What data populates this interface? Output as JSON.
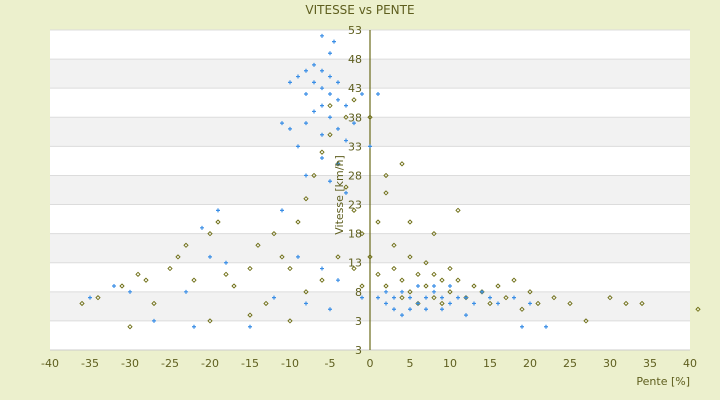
{
  "chart_data": {
    "type": "scatter",
    "title": "VITESSE vs PENTE",
    "xlabel": "Pente [%]",
    "ylabel": "Vitesse [km/h]",
    "xlim": [
      -40,
      40
    ],
    "ylim": [
      -2,
      53
    ],
    "x_ticks": [
      "-40",
      "-35",
      "-30",
      "-25",
      "-20",
      "-15",
      "-10",
      "-5",
      "0",
      "5",
      "10",
      "15",
      "20",
      "25",
      "30",
      "35",
      "40"
    ],
    "y_ticks": [
      "53",
      "48",
      "43",
      "38",
      "33",
      "28",
      "23",
      "18",
      "13",
      "8",
      "3",
      "3"
    ],
    "grid": "horizontal alternating bands",
    "legend": "none",
    "colors": {
      "background": "#ecf0cd",
      "plot": "#ffffff",
      "band": "#f2f2f2",
      "axis": "#6b6b1a",
      "series_blue": "#3a8ee6",
      "series_olive": "#6b6b10",
      "text": "#5e5e1e"
    },
    "series": [
      {
        "marker": "plus",
        "color": "#3a8ee6",
        "points": [
          [
            -6,
            52
          ],
          [
            -4.5,
            51
          ],
          [
            -5,
            49
          ],
          [
            -7,
            47
          ],
          [
            -8,
            46
          ],
          [
            -6,
            46
          ],
          [
            -5,
            45
          ],
          [
            -4,
            44
          ],
          [
            -9,
            45
          ],
          [
            -10,
            44
          ],
          [
            -7,
            44
          ],
          [
            -6,
            43
          ],
          [
            -5,
            42
          ],
          [
            -8,
            42
          ],
          [
            -4,
            41
          ],
          [
            -6,
            40
          ],
          [
            -7,
            39
          ],
          [
            -3,
            40
          ],
          [
            -1,
            42
          ],
          [
            1,
            42
          ],
          [
            -5,
            38
          ],
          [
            -8,
            37
          ],
          [
            -10,
            36
          ],
          [
            -11,
            37
          ],
          [
            -2,
            37
          ],
          [
            -4,
            36
          ],
          [
            -6,
            35
          ],
          [
            -3,
            34
          ],
          [
            0,
            33
          ],
          [
            -9,
            33
          ],
          [
            -6,
            31
          ],
          [
            -4,
            30
          ],
          [
            -8,
            28
          ],
          [
            -5,
            27
          ],
          [
            -3,
            25
          ],
          [
            -11,
            22
          ],
          [
            -19,
            22
          ],
          [
            -21,
            19
          ],
          [
            -20,
            14
          ],
          [
            -18,
            13
          ],
          [
            -9,
            14
          ],
          [
            -6,
            12
          ],
          [
            -4,
            10
          ],
          [
            -32,
            9
          ],
          [
            -30,
            8
          ],
          [
            -35,
            7
          ],
          [
            -23,
            8
          ],
          [
            -12,
            7
          ],
          [
            -8,
            6
          ],
          [
            -5,
            5
          ],
          [
            -22,
            2
          ],
          [
            -15,
            2
          ],
          [
            -27,
            3
          ],
          [
            -1,
            7
          ],
          [
            1,
            7
          ],
          [
            2,
            6
          ],
          [
            3,
            7
          ],
          [
            4,
            8
          ],
          [
            5,
            7
          ],
          [
            6,
            6
          ],
          [
            7,
            7
          ],
          [
            8,
            8
          ],
          [
            9,
            7
          ],
          [
            10,
            6
          ],
          [
            11,
            7
          ],
          [
            12,
            7
          ],
          [
            13,
            6
          ],
          [
            14,
            8
          ],
          [
            15,
            7
          ],
          [
            16,
            6
          ],
          [
            3,
            5
          ],
          [
            5,
            5
          ],
          [
            7,
            5
          ],
          [
            9,
            5
          ],
          [
            2,
            8
          ],
          [
            6,
            9
          ],
          [
            8,
            9
          ],
          [
            10,
            9
          ],
          [
            19,
            2
          ],
          [
            22,
            2
          ],
          [
            20,
            6
          ],
          [
            18,
            7
          ],
          [
            4,
            4
          ],
          [
            12,
            4
          ]
        ]
      },
      {
        "marker": "diamond",
        "color": "#6b6b10",
        "points": [
          [
            -36,
            6
          ],
          [
            -34,
            7
          ],
          [
            -31,
            9
          ],
          [
            -28,
            10
          ],
          [
            -25,
            12
          ],
          [
            -24,
            14
          ],
          [
            -23,
            16
          ],
          [
            -20,
            18
          ],
          [
            -19,
            20
          ],
          [
            -22,
            10
          ],
          [
            -18,
            11
          ],
          [
            -17,
            9
          ],
          [
            -15,
            12
          ],
          [
            -14,
            16
          ],
          [
            -12,
            18
          ],
          [
            -11,
            14
          ],
          [
            -10,
            12
          ],
          [
            -9,
            20
          ],
          [
            -8,
            24
          ],
          [
            -7,
            28
          ],
          [
            -6,
            32
          ],
          [
            -5,
            35
          ],
          [
            -4,
            30
          ],
          [
            -3,
            26
          ],
          [
            -2,
            22
          ],
          [
            -1,
            18
          ],
          [
            -3,
            38
          ],
          [
            -5,
            40
          ],
          [
            -2,
            41
          ],
          [
            0,
            38
          ],
          [
            -8,
            8
          ],
          [
            -6,
            10
          ],
          [
            -4,
            14
          ],
          [
            -2,
            12
          ],
          [
            -1,
            9
          ],
          [
            0,
            14
          ],
          [
            1,
            20
          ],
          [
            1,
            11
          ],
          [
            2,
            9
          ],
          [
            2,
            28
          ],
          [
            3,
            16
          ],
          [
            3,
            12
          ],
          [
            4,
            10
          ],
          [
            4,
            7
          ],
          [
            5,
            14
          ],
          [
            5,
            8
          ],
          [
            6,
            11
          ],
          [
            6,
            6
          ],
          [
            7,
            9
          ],
          [
            7,
            13
          ],
          [
            8,
            7
          ],
          [
            8,
            11
          ],
          [
            9,
            10
          ],
          [
            9,
            6
          ],
          [
            10,
            8
          ],
          [
            10,
            12
          ],
          [
            11,
            10
          ],
          [
            12,
            7
          ],
          [
            13,
            9
          ],
          [
            14,
            8
          ],
          [
            15,
            6
          ],
          [
            16,
            9
          ],
          [
            17,
            7
          ],
          [
            18,
            10
          ],
          [
            19,
            5
          ],
          [
            20,
            8
          ],
          [
            21,
            6
          ],
          [
            23,
            7
          ],
          [
            25,
            6
          ],
          [
            27,
            3
          ],
          [
            30,
            7
          ],
          [
            32,
            6
          ],
          [
            34,
            6
          ],
          [
            41,
            5
          ],
          [
            8,
            18
          ],
          [
            5,
            20
          ],
          [
            2,
            25
          ],
          [
            4,
            30
          ],
          [
            11,
            22
          ],
          [
            -15,
            4
          ],
          [
            -20,
            3
          ],
          [
            -27,
            6
          ],
          [
            -29,
            11
          ],
          [
            -13,
            6
          ],
          [
            -10,
            3
          ],
          [
            -30,
            2
          ]
        ]
      }
    ]
  }
}
